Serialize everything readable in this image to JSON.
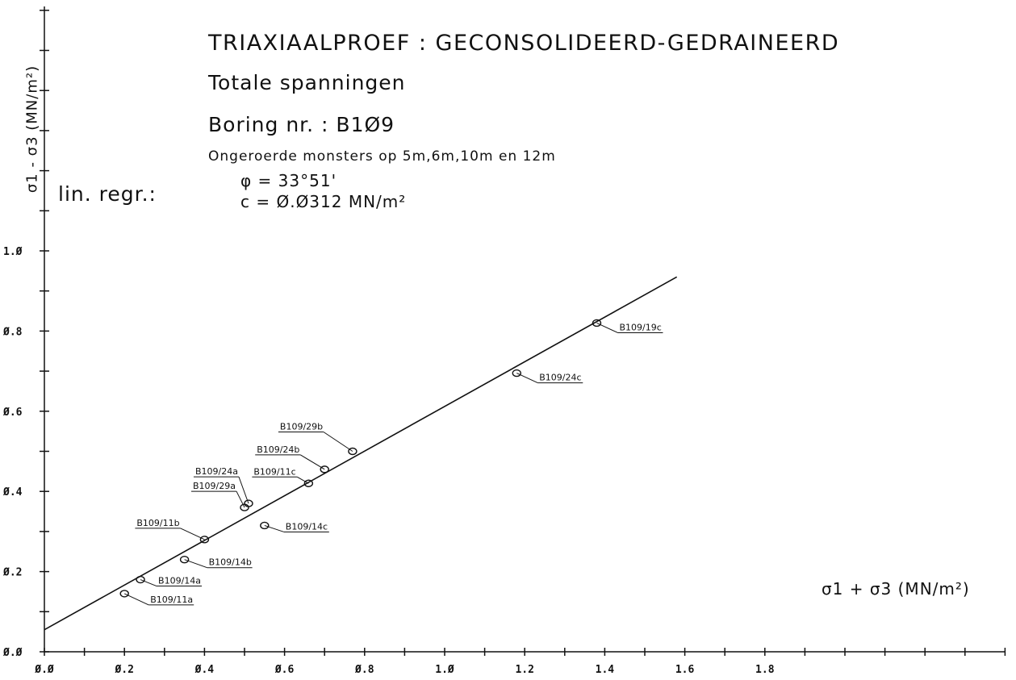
{
  "header": {
    "title": "TRIAXIAALPROEF : GECONSOLIDEERD-GEDRAINEERD",
    "subtitle": "Totale spanningen",
    "boring": "Boring nr. : B1Ø9",
    "samples": "Ongeroerde monsters op 5m,6m,10m en 12m"
  },
  "regression": {
    "label": "lin. regr.:",
    "phi": "φ = 33°51'",
    "c": "c = Ø.Ø312 MN/m²"
  },
  "chart_data": {
    "type": "scatter",
    "xlabel": "σ1 + σ3 (MN/m²)",
    "ylabel": "σ1 - σ3 (MN/m²)",
    "xlim": [
      0.0,
      2.0
    ],
    "ylim": [
      0.0,
      1.4
    ],
    "x_tick_labels": [
      "Ø.Ø",
      "Ø.2",
      "Ø.4",
      "Ø.6",
      "Ø.8",
      "1.Ø",
      "1.2",
      "1.4",
      "1.6",
      "1.8"
    ],
    "x_tick_values": [
      0.0,
      0.2,
      0.4,
      0.6,
      0.8,
      1.0,
      1.2,
      1.4,
      1.6,
      1.8
    ],
    "y_tick_labels": [
      "Ø.Ø",
      "Ø.2",
      "Ø.4",
      "Ø.6",
      "Ø.8",
      "1.Ø"
    ],
    "y_tick_values": [
      0.0,
      0.2,
      0.4,
      0.6,
      0.8,
      1.0
    ],
    "points": [
      {
        "label": "B109/11a",
        "x": 0.2,
        "y": 0.145
      },
      {
        "label": "B109/14a",
        "x": 0.24,
        "y": 0.18
      },
      {
        "label": "B109/14b",
        "x": 0.35,
        "y": 0.23
      },
      {
        "label": "B109/11b",
        "x": 0.4,
        "y": 0.28
      },
      {
        "label": "B109/29a",
        "x": 0.5,
        "y": 0.36
      },
      {
        "label": "B109/24a",
        "x": 0.51,
        "y": 0.37
      },
      {
        "label": "B109/14c",
        "x": 0.55,
        "y": 0.315
      },
      {
        "label": "B109/11c",
        "x": 0.66,
        "y": 0.42
      },
      {
        "label": "B109/24b",
        "x": 0.7,
        "y": 0.455
      },
      {
        "label": "B109/29b",
        "x": 0.77,
        "y": 0.5
      },
      {
        "label": "B109/24c",
        "x": 1.18,
        "y": 0.695
      },
      {
        "label": "B109/19c",
        "x": 1.38,
        "y": 0.82
      }
    ],
    "regression_line": {
      "x": [
        0.0,
        1.58
      ],
      "y": [
        0.055,
        0.935
      ]
    }
  }
}
